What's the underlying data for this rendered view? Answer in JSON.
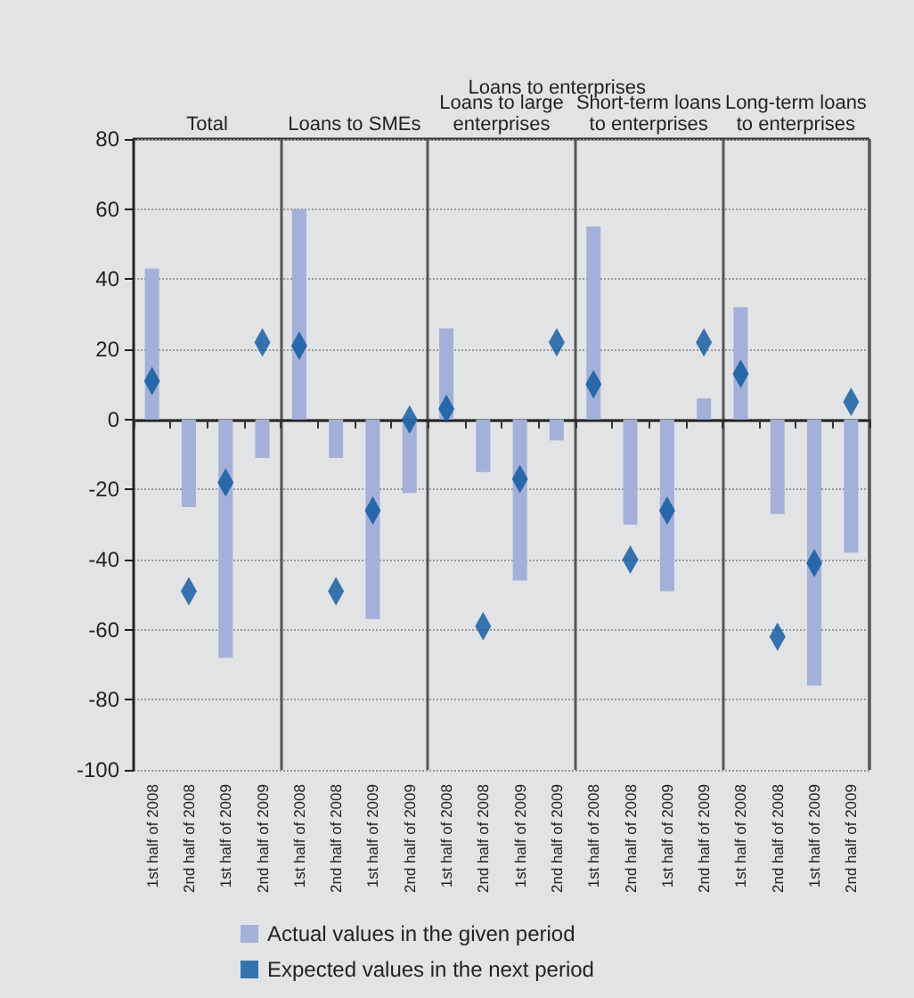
{
  "chart_data": {
    "type": "bar",
    "annotations": [
      "Loans to enterprises",
      "Total",
      "Loans to SMEs",
      "Loans to large\nenterprises",
      "Short-term loans\nto enterprises",
      "Long-term loans\nto enterprises"
    ],
    "categories": [
      "1st half of 2008",
      "2nd half of 2008",
      "1st half of 2009",
      "2nd half of 2009",
      "1st half of 2008",
      "2nd half of 2008",
      "1st half of 2009",
      "2nd half of 2009",
      "1st half of 2008",
      "2nd half of 2008",
      "1st half of 2009",
      "2nd half of 2009",
      "1st half of 2008",
      "2nd half of 2008",
      "1st half of 2009",
      "2nd half of 2009",
      "1st half of 2008",
      "2nd half of 2008",
      "1st half of 2009",
      "2nd half of 2009"
    ],
    "series": [
      {
        "name": "Actual values in the given period",
        "color": "#a3b0d8",
        "values": [
          43,
          -25,
          -68,
          -11,
          60,
          -11,
          -57,
          -21,
          26,
          -15,
          -46,
          -6,
          55,
          -30,
          -49,
          6,
          32,
          -27,
          -76,
          -38
        ]
      },
      {
        "name": "Expected values in the next period",
        "type": "scatter",
        "marker": "diamond",
        "color": "#0a55a0",
        "values": [
          11,
          -49,
          -18,
          22,
          21,
          -49,
          -26,
          0,
          3,
          -59,
          -17,
          22,
          10,
          -40,
          -26,
          22,
          13,
          -62,
          -41,
          5
        ]
      }
    ],
    "ylim": [
      -100,
      80
    ],
    "yticks": [
      -100,
      -80,
      -60,
      -40,
      -20,
      0,
      20,
      40,
      60,
      80
    ],
    "grid": "y",
    "legend": "bottom"
  }
}
